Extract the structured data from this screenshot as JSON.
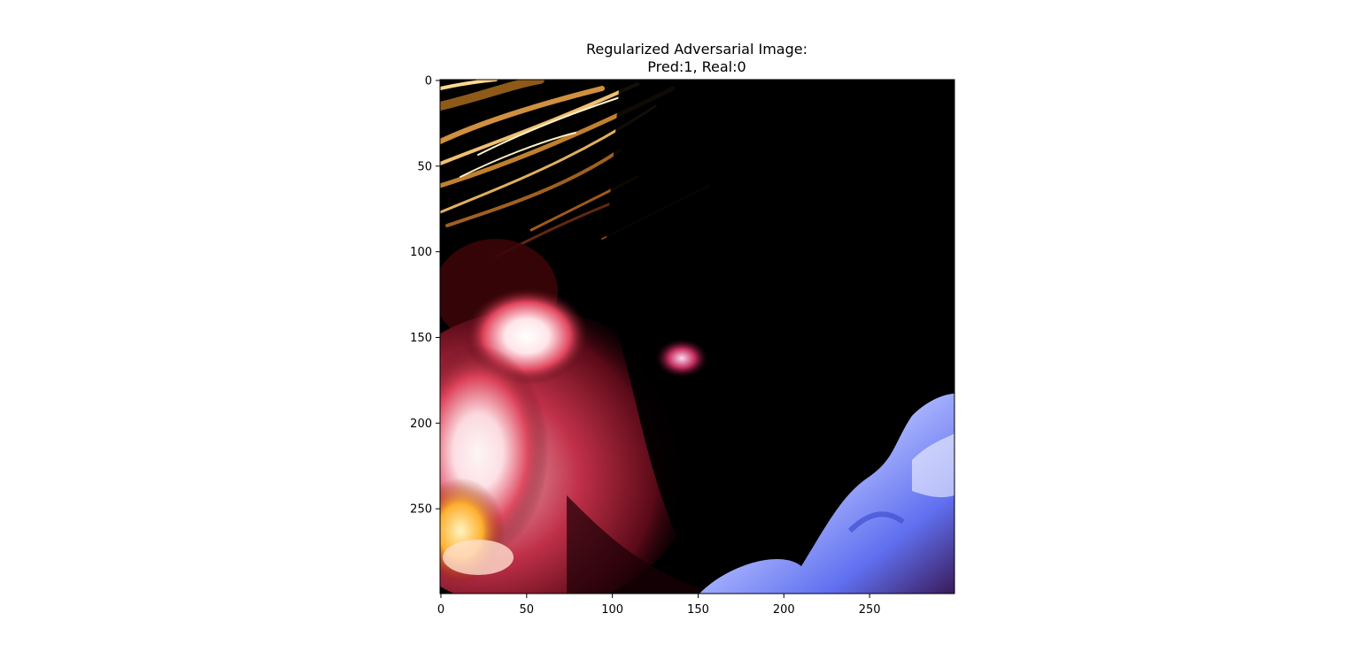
{
  "chart_data": {
    "type": "heatmap",
    "title": "Regularized Adversarial Image:",
    "subtitle": "Pred:1, Real:0",
    "xlabel": "",
    "ylabel": "",
    "xlim": [
      0,
      299
    ],
    "ylim": [
      299,
      0
    ],
    "y_inverted": true,
    "grid": false,
    "x_ticks": [
      {
        "value": 0,
        "label": "0"
      },
      {
        "value": 50,
        "label": "50"
      },
      {
        "value": 100,
        "label": "100"
      },
      {
        "value": 150,
        "label": "150"
      },
      {
        "value": 200,
        "label": "200"
      },
      {
        "value": 250,
        "label": "250"
      }
    ],
    "y_ticks": [
      {
        "value": 0,
        "label": "0"
      },
      {
        "value": 50,
        "label": "50"
      },
      {
        "value": 100,
        "label": "100"
      },
      {
        "value": 150,
        "label": "150"
      },
      {
        "value": 200,
        "label": "200"
      },
      {
        "value": 250,
        "label": "250"
      }
    ],
    "image_description_colors": {
      "background": "#000000",
      "hair": "#c8903c",
      "skin_highlight": "#ffe0e6",
      "skin_shadow": "#8a1c2c",
      "shirt": "#a8b4ff"
    }
  }
}
